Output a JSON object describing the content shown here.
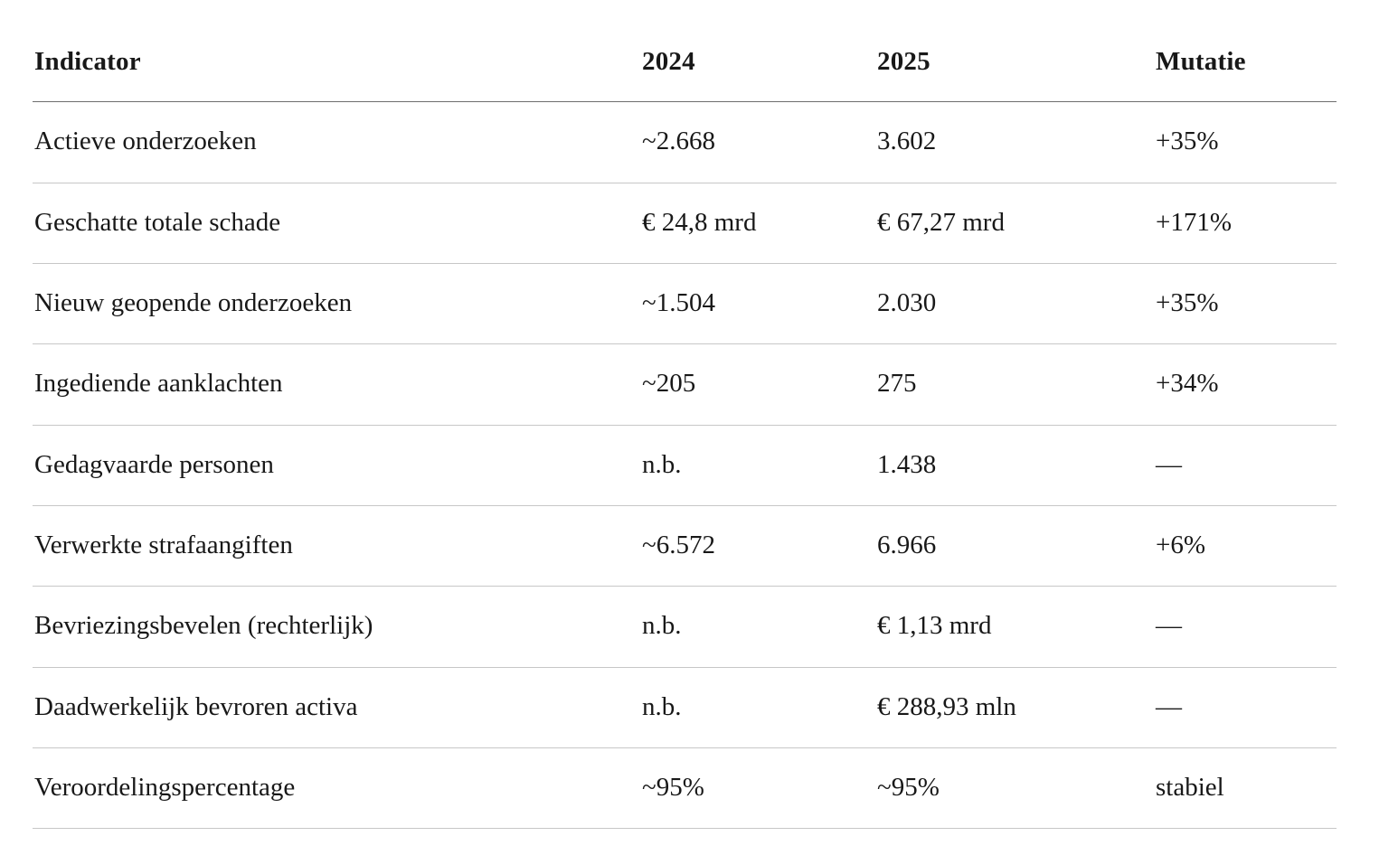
{
  "chart_data": {
    "type": "table",
    "title": "",
    "columns": [
      "Indicator",
      "2024",
      "2025",
      "Mutatie"
    ],
    "rows": [
      [
        "Actieve onderzoeken",
        "~2.668",
        "3.602",
        "+35%"
      ],
      [
        "Geschatte totale schade",
        "€ 24,8 mrd",
        "€ 67,27 mrd",
        "+171%"
      ],
      [
        "Nieuw geopende onderzoeken",
        "~1.504",
        "2.030",
        "+35%"
      ],
      [
        "Ingediende aanklachten",
        "~205",
        "275",
        "+34%"
      ],
      [
        "Gedagvaarde personen",
        "n.b.",
        "1.438",
        "—"
      ],
      [
        "Verwerkte strafaangiften",
        "~6.572",
        "6.966",
        "+6%"
      ],
      [
        "Bevriezingsbevelen (rechterlijk)",
        "n.b.",
        "€ 1,13 mrd",
        "—"
      ],
      [
        "Daadwerkelijk bevroren activa",
        "n.b.",
        "€ 288,93 mln",
        "—"
      ],
      [
        "Veroordelingspercentage",
        "~95%",
        "~95%",
        "stabiel"
      ]
    ],
    "layout": {
      "grid": "horizontal-row-separators-only",
      "header_position": "top"
    }
  },
  "colors": {
    "text": "#181818",
    "background": "#ffffff",
    "header_border": "#6e6e6e",
    "row_border": "#c7c7c7"
  }
}
